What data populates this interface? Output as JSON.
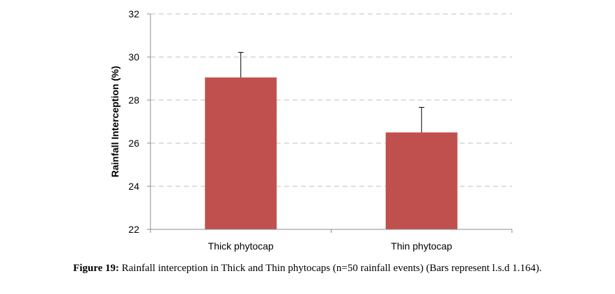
{
  "chart_data": {
    "type": "bar",
    "categories": [
      "Thick phytocap",
      "Thin phytocap"
    ],
    "values": [
      29.05,
      26.5
    ],
    "error": [
      1.164,
      1.164
    ],
    "title": "",
    "xlabel": "",
    "ylabel": "Rainfall Interception (%)",
    "ylim": [
      22,
      32
    ],
    "yticks": [
      22,
      24,
      26,
      28,
      30,
      32
    ],
    "grid": true,
    "legend": "none",
    "bar_color": "#c0504d"
  },
  "caption": {
    "label": "Figure 19:",
    "text": " Rainfall interception in Thick and Thin phytocaps (n=50 rainfall events) (Bars represent l.s.d 1.164)."
  }
}
